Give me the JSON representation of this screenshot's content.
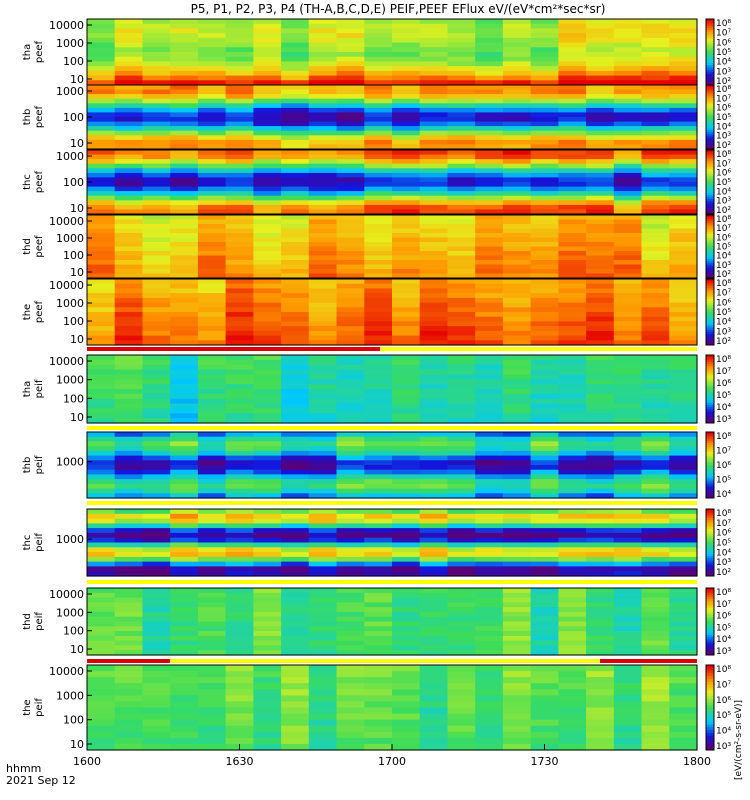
{
  "chart_data": {
    "type": "heatmap",
    "title": "P5, P1, P2, P3, P4 (TH-A,B,C,D,E) PEIF,PEEF EFlux eV/(eV*cm²*sec*sr)",
    "x_label": "hhmm",
    "date_label": "2021 Sep 12",
    "x_ticks": [
      "1600",
      "1630",
      "1700",
      "1730",
      "1800"
    ],
    "x_range": [
      "16:00",
      "18:00"
    ],
    "colorbar_unit": "[eV/(cm²-s-sr-eV)]",
    "scale": "log",
    "panels": [
      {
        "probe": "tha",
        "species": "peef",
        "ticks": [
          "10000",
          "1000",
          "100",
          "10"
        ],
        "cbar_ticks": [
          "10⁸",
          "10⁷",
          "10⁶",
          "10⁵",
          "10⁴",
          "10³",
          "10²"
        ]
      },
      {
        "probe": "thb",
        "species": "peef",
        "ticks": [
          "1000",
          "100",
          "10"
        ],
        "cbar_ticks": [
          "10⁸",
          "10⁷",
          "10⁶",
          "10⁵",
          "10⁴",
          "10³",
          "10²"
        ]
      },
      {
        "probe": "thc",
        "species": "peef",
        "ticks": [
          "1000",
          "100",
          "10"
        ],
        "cbar_ticks": [
          "10⁸",
          "10⁷",
          "10⁶",
          "10⁵",
          "10⁴",
          "10³",
          "10²"
        ]
      },
      {
        "probe": "thd",
        "species": "peef",
        "ticks": [
          "10000",
          "1000",
          "100",
          "10"
        ],
        "cbar_ticks": [
          "10⁸",
          "10⁷",
          "10⁶",
          "10⁵",
          "10⁴",
          "10³",
          "10²"
        ]
      },
      {
        "probe": "the",
        "species": "peef",
        "ticks": [
          "10000",
          "1000",
          "100",
          "10"
        ],
        "cbar_ticks": [
          "10⁸",
          "10⁷",
          "10⁶",
          "10⁵",
          "10⁴",
          "10³",
          "10²"
        ]
      },
      {
        "probe": "tha",
        "species": "peif",
        "ticks": [
          "10000",
          "1000",
          "100",
          "10"
        ],
        "cbar_ticks": [
          "10⁸",
          "10⁷",
          "10⁶",
          "10⁵",
          "10⁴",
          "10³"
        ]
      },
      {
        "probe": "thb",
        "species": "peif",
        "ticks": [
          "1000"
        ],
        "cbar_ticks": [
          "10⁸",
          "10⁷",
          "10⁶",
          "10⁵",
          "10⁴"
        ]
      },
      {
        "probe": "thc",
        "species": "peif",
        "ticks": [
          "1000"
        ],
        "cbar_ticks": [
          "10⁸",
          "10⁷",
          "10⁶",
          "10⁵",
          "10⁴",
          "10³",
          "10²"
        ]
      },
      {
        "probe": "thd",
        "species": "peif",
        "ticks": [
          "10000",
          "1000",
          "100",
          "10"
        ],
        "cbar_ticks": [
          "10⁸",
          "10⁷",
          "10⁶",
          "10⁵",
          "10⁴",
          "10³"
        ]
      },
      {
        "probe": "the",
        "species": "peif",
        "ticks": [
          "10000",
          "1000",
          "100",
          "10"
        ],
        "cbar_ticks": [
          "10⁸",
          "10⁷",
          "10⁶",
          "10⁵",
          "10⁴",
          "10³"
        ]
      }
    ]
  }
}
